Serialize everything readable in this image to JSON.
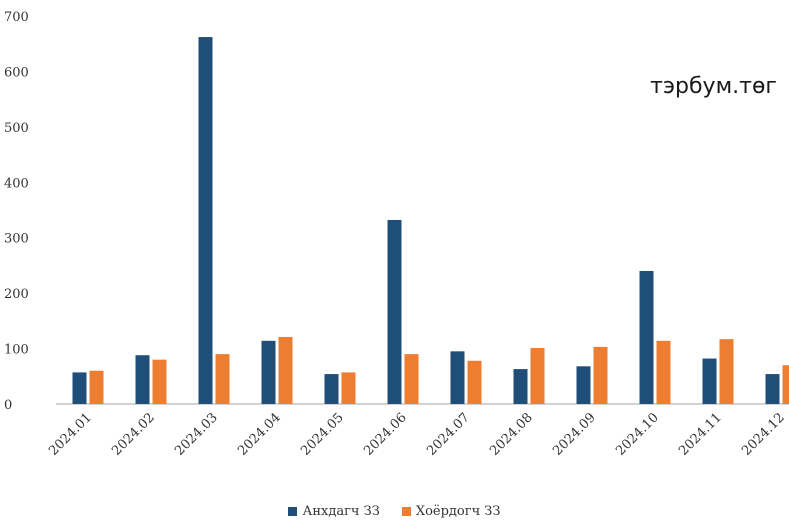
{
  "unit_label": "тэрбум.төг",
  "colors": {
    "primary": "#1f4e79",
    "secondary": "#ed7d31",
    "axis": "#a6a6a6",
    "text": "#333333"
  },
  "legend": {
    "primary_label": "Анхдагч ЗЗ",
    "secondary_label": "Хоёрдогч ЗЗ"
  },
  "chart_data": {
    "type": "bar",
    "categories": [
      "2024.01",
      "2024.02",
      "2024.03",
      "2024.04",
      "2024.05",
      "2024.06",
      "2024.07",
      "2024.08",
      "2024.09",
      "2024.10",
      "2024.11",
      "2024.12"
    ],
    "series": [
      {
        "name": "Анхдагч ЗЗ",
        "values": [
          57,
          88,
          662,
          114,
          54,
          332,
          95,
          63,
          68,
          240,
          82,
          54
        ]
      },
      {
        "name": "Хоёрдогч ЗЗ",
        "values": [
          60,
          80,
          90,
          121,
          57,
          90,
          78,
          101,
          103,
          114,
          117,
          70
        ]
      }
    ],
    "ylim": [
      0,
      700
    ],
    "yticks": [
      "0",
      "100",
      "200",
      "300",
      "400",
      "500",
      "600",
      "700"
    ],
    "grid": false,
    "legend_position": "bottom"
  }
}
